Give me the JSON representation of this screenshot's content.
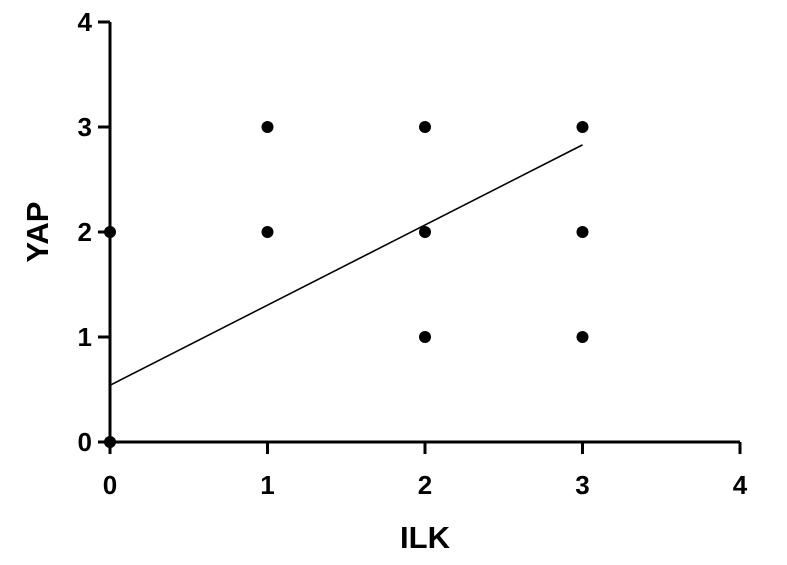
{
  "chart_data": {
    "type": "scatter",
    "title": "",
    "xlabel": "ILK",
    "ylabel": "YAP",
    "xlim": [
      0,
      4
    ],
    "ylim": [
      0,
      4
    ],
    "xticks": [
      0,
      1,
      2,
      3,
      4
    ],
    "yticks": [
      0,
      1,
      2,
      3,
      4
    ],
    "grid": false,
    "points": [
      {
        "x": 0,
        "y": 2
      },
      {
        "x": 0,
        "y": 0
      },
      {
        "x": 1,
        "y": 3
      },
      {
        "x": 1,
        "y": 2
      },
      {
        "x": 2,
        "y": 3
      },
      {
        "x": 2,
        "y": 2
      },
      {
        "x": 2,
        "y": 1
      },
      {
        "x": 3,
        "y": 3
      },
      {
        "x": 3,
        "y": 2
      },
      {
        "x": 3,
        "y": 1
      }
    ],
    "fit_line": {
      "x_start": 0,
      "y_start": 0.54,
      "x_end": 3,
      "y_end": 2.83
    },
    "colors": {
      "marker": "#000000",
      "axis": "#000000",
      "line": "#000000"
    }
  }
}
